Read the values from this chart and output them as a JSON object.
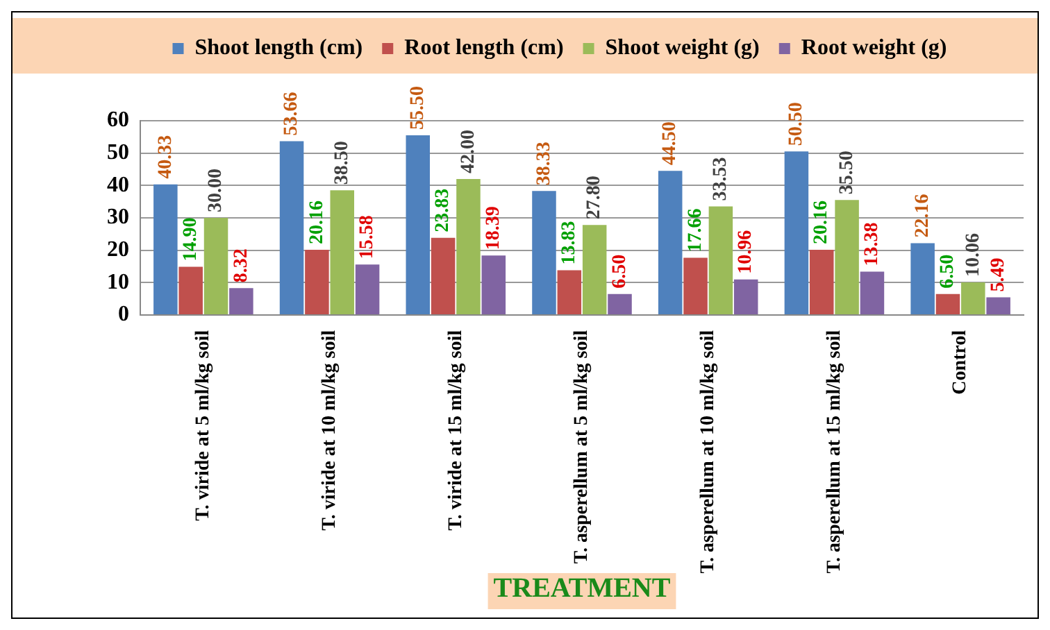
{
  "chart_data": {
    "type": "bar",
    "xlabel": "TREATMENT",
    "categories": [
      "T. viride at 5 ml/kg soil",
      "T. viride at 10 ml/kg soil",
      "T. viride at 15 ml/kg soil",
      "T. asperellum at 5 ml/kg soil",
      "T. asperellum at 10 ml/kg soil",
      "T. asperellum at 15 ml/kg soil",
      "Control"
    ],
    "series": [
      {
        "name": "Shoot length (cm)",
        "color": "#4f81bd",
        "values": [
          40.33,
          53.66,
          55.5,
          38.33,
          44.5,
          50.5,
          22.16
        ],
        "value_labels": [
          "40.33",
          "53.66",
          "55.50",
          "38.33",
          "44.50",
          "50.50",
          "22.16"
        ]
      },
      {
        "name": "Root length (cm)",
        "color": "#c0504d",
        "values": [
          14.9,
          20.16,
          23.83,
          13.83,
          17.66,
          20.16,
          6.5
        ],
        "value_labels": [
          "14.90",
          "20.16",
          "23.83",
          "13.83",
          "17.66",
          "20.16",
          "6.50"
        ]
      },
      {
        "name": "Shoot weight (g)",
        "color": "#9bbb59",
        "values": [
          30,
          38.5,
          42,
          27.8,
          33.53,
          35.5,
          10.06
        ],
        "value_labels": [
          "30.00",
          "38.50",
          "42.00",
          "27.80",
          "33.53",
          "35.50",
          "10.06"
        ]
      },
      {
        "name": "Root weight (g)",
        "color": "#8064a2",
        "values": [
          8.32,
          15.58,
          18.39,
          6.5,
          10.96,
          13.38,
          5.49
        ],
        "value_labels": [
          "8.32",
          "15.58",
          "18.39",
          "6.50",
          "10.96",
          "13.38",
          "5.49"
        ]
      }
    ],
    "ylim": [
      0,
      60
    ],
    "yticks": [
      0,
      10,
      20,
      30,
      40,
      50,
      60
    ],
    "grid": "y",
    "legend": "top",
    "data_labels": true
  }
}
